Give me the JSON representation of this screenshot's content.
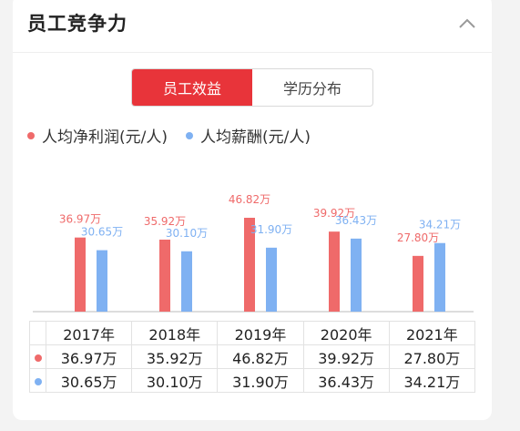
{
  "header": {
    "title": "员工竞争力"
  },
  "tabs": [
    {
      "label": "员工效益",
      "active": true
    },
    {
      "label": "学历分布",
      "active": false
    }
  ],
  "colors": {
    "accent": "#e8343a",
    "profit": "#ef6a6a",
    "salary": "#7fb1f2"
  },
  "chart_data": {
    "type": "bar",
    "categories": [
      "2017年",
      "2018年",
      "2019年",
      "2020年",
      "2021年"
    ],
    "series": [
      {
        "name": "人均净利润(元/人)",
        "values": [
          36.97,
          35.92,
          46.82,
          39.92,
          27.8
        ],
        "labels": [
          "36.97万",
          "35.92万",
          "46.82万",
          "39.92万",
          "27.80万"
        ],
        "color": "#ef6a6a"
      },
      {
        "name": "人均薪酬(元/人)",
        "values": [
          30.65,
          30.1,
          31.9,
          36.43,
          34.21
        ],
        "labels": [
          "30.65万",
          "30.10万",
          "31.90万",
          "36.43万",
          "34.21万"
        ],
        "color": "#7fb1f2"
      }
    ],
    "ylim": [
      0,
      50
    ],
    "grid": false,
    "legend": "top-left"
  },
  "table": {
    "header": [
      "2017年",
      "2018年",
      "2019年",
      "2020年",
      "2021年"
    ],
    "rows": [
      [
        "36.97万",
        "35.92万",
        "46.82万",
        "39.92万",
        "27.80万"
      ],
      [
        "30.65万",
        "30.10万",
        "31.90万",
        "36.43万",
        "34.21万"
      ]
    ]
  }
}
